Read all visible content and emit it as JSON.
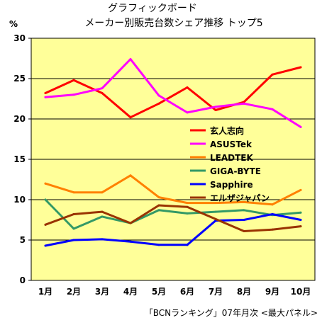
{
  "chart_data": {
    "type": "line",
    "title_line1": "グラフィックボード",
    "title_line2": "メーカー別販売台数シェア推移 トップ5",
    "ylabel": "%",
    "source": "「BCNランキング」07年月次 <最大パネル>",
    "categories": [
      "1月",
      "2月",
      "3月",
      "4月",
      "5月",
      "6月",
      "7月",
      "8月",
      "9月",
      "10月"
    ],
    "y_ticks": [
      0,
      5,
      10,
      15,
      20,
      25,
      30
    ],
    "ylim": [
      0,
      30
    ],
    "grid": true,
    "legend_position": "center-right",
    "colors": {
      "plot_background": "#ffff99",
      "page_background": "#ffffff",
      "gridline": "#000000"
    },
    "series": [
      {
        "name": "玄人志向",
        "color": "#ff0000",
        "values": [
          23.2,
          24.8,
          23.2,
          20.2,
          21.9,
          23.9,
          21.1,
          22.1,
          25.5,
          26.4
        ]
      },
      {
        "name": "ASUSTek",
        "color": "#ff00ff",
        "values": [
          22.7,
          23.0,
          23.8,
          27.4,
          22.9,
          20.8,
          21.5,
          21.9,
          21.2,
          19.0
        ]
      },
      {
        "name": "LEADTEK",
        "color": "#ff8000",
        "values": [
          12.0,
          10.9,
          10.9,
          13.0,
          10.3,
          9.6,
          9.6,
          9.7,
          9.4,
          11.2
        ]
      },
      {
        "name": "GIGA-BYTE",
        "color": "#339966",
        "values": [
          10.0,
          6.4,
          7.9,
          7.1,
          8.7,
          8.3,
          8.5,
          8.7,
          8.1,
          8.4
        ]
      },
      {
        "name": "Sapphire",
        "color": "#0000ff",
        "values": [
          4.3,
          5.0,
          5.1,
          4.8,
          4.4,
          4.4,
          7.4,
          7.5,
          8.2,
          7.5
        ]
      },
      {
        "name": "エルザジャパン",
        "color": "#993300",
        "values": [
          6.9,
          8.2,
          8.5,
          7.1,
          9.3,
          9.1,
          7.6,
          6.1,
          6.3,
          6.7
        ]
      }
    ]
  }
}
